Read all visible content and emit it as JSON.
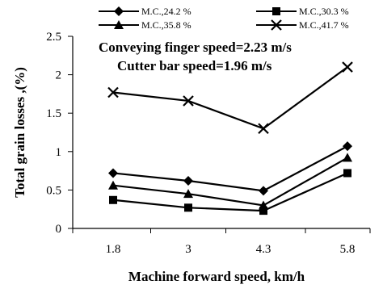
{
  "chart_data": {
    "type": "line",
    "title": "",
    "xlabel": "Machine forward speed, km/h",
    "ylabel": "Total grain losses ,(%)",
    "categories": [
      "1.8",
      "3",
      "4.3",
      "5.8"
    ],
    "ylim": [
      0,
      2.5
    ],
    "yticks": [
      "0",
      "0.5",
      "1",
      "1.5",
      "2",
      "2.5"
    ],
    "grid": false,
    "legend_position": "top",
    "annotations": [
      "Conveying finger speed=2.23 m/s",
      "Cutter bar speed=1.96 m/s"
    ],
    "series": [
      {
        "name": "M.C.,24.2 %",
        "marker": "diamond",
        "values": [
          0.72,
          0.62,
          0.49,
          1.07
        ]
      },
      {
        "name": "M.C.,30.3 %",
        "marker": "square",
        "values": [
          0.37,
          0.27,
          0.23,
          0.72
        ]
      },
      {
        "name": "M.C.,35.8 %",
        "marker": "triangle",
        "values": [
          0.56,
          0.45,
          0.3,
          0.92
        ]
      },
      {
        "name": "M.C.,41.7 %",
        "marker": "x",
        "values": [
          1.77,
          1.66,
          1.3,
          2.1
        ]
      }
    ],
    "color": "#000000"
  }
}
